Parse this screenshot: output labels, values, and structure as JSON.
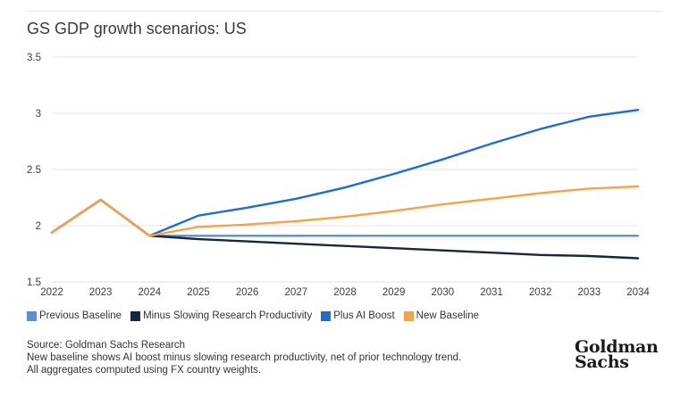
{
  "title": "GS GDP growth scenarios: US",
  "colors": {
    "previous_baseline": "#5b8fd3",
    "minus_slowing": "#17263a",
    "plus_ai": "#1f6ccf",
    "new_baseline": "#f5a24b",
    "grid": "#e3e3e3"
  },
  "chart_data": {
    "type": "line",
    "title": "GS GDP growth scenarios: US",
    "x": [
      "2022",
      "2023",
      "2024",
      "2025",
      "2026",
      "2027",
      "2028",
      "2029",
      "2030",
      "2031",
      "2032",
      "2033",
      "2034"
    ],
    "ylim": [
      1.5,
      3.5
    ],
    "yticks": [
      "1.5",
      "2",
      "2.5",
      "3",
      "3.5"
    ],
    "grid": "horizontal",
    "legend": "bottom-left",
    "series": [
      {
        "name": "Previous Baseline",
        "color_key": "previous_baseline",
        "values": [
          1.94,
          2.23,
          1.91,
          1.91,
          1.91,
          1.91,
          1.91,
          1.91,
          1.91,
          1.91,
          1.91,
          1.91,
          1.91
        ]
      },
      {
        "name": "Minus Slowing Research Productivity",
        "color_key": "minus_slowing",
        "values": [
          1.94,
          2.23,
          1.91,
          1.88,
          1.86,
          1.84,
          1.82,
          1.8,
          1.78,
          1.76,
          1.74,
          1.73,
          1.71
        ]
      },
      {
        "name": "Plus AI Boost",
        "color_key": "plus_ai",
        "values": [
          1.94,
          2.23,
          1.91,
          2.09,
          2.16,
          2.24,
          2.34,
          2.46,
          2.59,
          2.73,
          2.86,
          2.97,
          3.03
        ]
      },
      {
        "name": "New Baseline",
        "color_key": "new_baseline",
        "values": [
          1.94,
          2.23,
          1.91,
          1.99,
          2.01,
          2.04,
          2.08,
          2.13,
          2.19,
          2.24,
          2.29,
          2.33,
          2.35
        ]
      }
    ]
  },
  "legend": [
    {
      "label": "Previous Baseline",
      "color_key": "previous_baseline"
    },
    {
      "label": "Minus Slowing Research Productivity",
      "color_key": "minus_slowing"
    },
    {
      "label": "Plus AI Boost",
      "color_key": "plus_ai"
    },
    {
      "label": "New Baseline",
      "color_key": "new_baseline"
    }
  ],
  "footer": {
    "source": "Source: Goldman Sachs Research",
    "note1": "New baseline shows AI boost minus slowing research productivity, net of prior technology trend.",
    "note2": "All aggregates computed using FX country weights."
  },
  "logo": {
    "line1": "Goldman",
    "line2": "Sachs"
  }
}
